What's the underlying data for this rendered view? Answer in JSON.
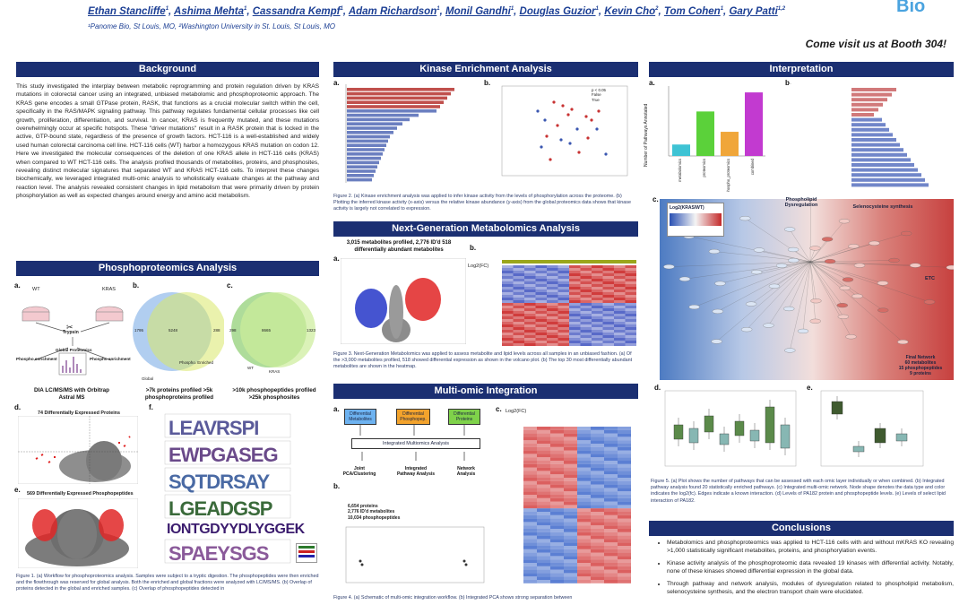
{
  "header": {
    "authors": [
      {
        "name": "Ethan Stancliffe",
        "sup": "1"
      },
      {
        "name": "Ashima Mehta",
        "sup": "1"
      },
      {
        "name": "Cassandra Kempf",
        "sup": "1"
      },
      {
        "name": "Adam Richardson",
        "sup": "1"
      },
      {
        "name": "Monil Gandhi",
        "sup": "1"
      },
      {
        "name": "Douglas Guzior",
        "sup": "1"
      },
      {
        "name": "Kevin Cho",
        "sup": "2"
      },
      {
        "name": "Tom Cohen",
        "sup": "1"
      },
      {
        "name": "Gary Patti",
        "sup": "1,2"
      }
    ],
    "affiliations": "¹Panome Bio, St Louis, MO, ²Washington University in St. Louis, St Louis, MO",
    "logo_text": "Bio",
    "booth": "Come visit us at Booth 304!"
  },
  "background": {
    "title": "Background",
    "text": "This study investigated the interplay between metabolic reprogramming and protein regulation driven by KRAS mutations in colorectal cancer using an integrated, unbiased metabolomic and phosphoproteomic approach. The KRAS gene encodes a small GTPase protein, RASK, that functions as a crucial molecular switch within the cell, specifically in the RAS/MAPK signaling pathway. This pathway regulates fundamental cellular processes like cell growth, proliferation, differentiation, and survival. In cancer, KRAS is frequently mutated, and these mutations overwhelmingly occur at specific hotspots. These \"driver mutations\" result in a RASK protein that is locked in the active, GTP-bound state, regardless of the presence of growth factors. HCT-116 is a well-established and widely used human colorectal carcinoma cell line. HCT-116 cells (WT) harbor a homozygous KRAS mutation on codon 12. Here we investigated the molecular consequences of the deletion of one KRAS allele in HCT-116 cells (KRAS) when compared to WT HCT-116 cells. The analysis profiled thousands of metabolites, proteins, and phosphosites, revealing distinct molecular signatures that separated WT and KRAS HCT-116 cells. To interpret these changes biochemically, we leveraged integrated multi-omic analysis to wholistically evaluate changes at the pathway and reaction level. The analysis revealed consistent changes in lipid metabolism that were primarily driven by protein phosphorylation as well as expected changes around energy and amino acid metabolism."
  },
  "phospho": {
    "title": "Phosphoproteomics Analysis",
    "labels": {
      "a": "a.",
      "b": "b.",
      "c": "c.",
      "d": "d.",
      "e": "e.",
      "f": "f."
    },
    "wt": "WT",
    "kras": "KRAS",
    "trypsin": "Trypsin",
    "global": "Global Proteomics",
    "phospho_enrich_left": "Phospho enrichment",
    "phospho_enrich_right": "Phospho enrichment",
    "instrument": "DIA LC/MS/MS with Orbitrap Astral MS",
    "venn_b": {
      "left": "1795",
      "mid": "5248",
      "right": "288",
      "label_left": "Global",
      "label_right": "Phospho. Enriched"
    },
    "venn_c": {
      "left": "298",
      "mid": "8665",
      "right": "1323",
      "label_left": "WT",
      "label_right": "KRAS"
    },
    "b_result": ">7k proteins profiled\n>5k phosphoproteins profiled",
    "c_result": ">10k phosphopeptides profiled\n>25k phosphosites",
    "d_title": "74 Differentially Expressed Proteins",
    "e_title": "569 Differentially Expressed Phosphopeptides",
    "logo_big": "IONTGDYYDLYGGEK",
    "caption": "Figure 1. (a) Workflow for phosphoproteomics analysis. Samples were subject to a tryptic digestion. The phosphopeptides were then enriched and the flowthrough was reserved for global analysis. Both the enriched and global fractions were analyzed with LC/MS/MS. (b) Overlap of proteins detected in the global and enriched samples. (c) Overlap of phosphopeptides detected in"
  },
  "kinase": {
    "title": "Kinase Enrichment Analysis",
    "labels": {
      "a": "a.",
      "b": "b."
    },
    "legend": [
      "p < 0.05",
      "False",
      "True"
    ],
    "caption": "Figure 2. (a) Kinase enrichment analysis was applied to infer kinase activity from the levels of phosphorylation across the proteome. (b) Plotting the inferred kinase activity (x-axis) versus the relative kinase abundance (y-axis) from the global proteomics data shows that kinase activity is largely not correlated to expression."
  },
  "metab": {
    "title": "Next-Generation Metabolomics Analysis",
    "labels": {
      "a": "a.",
      "b": "b."
    },
    "summary": "3,015 metabolites profiled, 2,776 ID'd\n518 differentially abundant metabolites",
    "legend": "Log2(FC)",
    "caption": "Figure 3. Next-Generation Metabolomics was applied to assess metabolite and lipid levels across all samples in an unbiased fashion. (a) Of the >3,000 metabolites profiled, 518 showed differential expression as shown in the volcano plot. (b) The top 30 most differentially abundant metabolites are shown in the heatmap."
  },
  "multi": {
    "title": "Multi-omic Integration",
    "labels": {
      "a": "a.",
      "b": "b.",
      "c": "c."
    },
    "boxes": [
      "Differential Metabolites",
      "Differential Phosphopep.",
      "Differential Proteins"
    ],
    "integrated": "Integrated Multiomics Analysis",
    "outputs": [
      "Joint PCA/Clustering",
      "Integrated Pathway Analysis",
      "Network Analysis"
    ],
    "counts": "6,654 proteins\n2,776 ID'd metabolites\n10,034 phosphopeptides",
    "legend": "Log2(FC)",
    "caption": "Figure 4. (a) Schematic of multi-omic integration workflow. (b) Integrated PCA shows strong separation between"
  },
  "interp": {
    "title": "Interpretation",
    "labels": {
      "a": "a.",
      "b": "b.",
      "c": "c.",
      "d": "d.",
      "e": "e."
    },
    "ylabel": "Number of Pathways Annotated",
    "legend_title": "Log2(KRAS/WT)",
    "network_labels": [
      "Phospholipid Dysregulation",
      "Selenocysteine synthesis",
      "ETC"
    ],
    "final_network": "Final Network\n60 metabolites\n15 phosphopeptides\n9 proteins",
    "caption": "Figure 5. (a) Plot shows the number of pathways that can be assessed with each omic layer individually or when combined. (b) Integrated pathway analysis found 20 statistically enriched pathways. (c) Integrated multi-omic network. Node shape denotes the data type and color indicates the log2(fc). Edges indicate a known interaction. (d) Levels of PA182 protein and phosphopeptide levels. (e) Levels of select lipid interaction of PA182."
  },
  "conclusions": {
    "title": "Conclusions",
    "items": [
      "Metabolomics and phosphoproteomics was applied to HCT-116 cells with and without mKRAS KO revealing >1,000 statistically significant metabolites, proteins, and phosphorylation events.",
      "Kinase activity analysis of the phosphoproteomic data revealed 19 kinases with differential activity. Notably, none of these kinases showed differential expression in the global data.",
      "Through pathway and network analysis, modules of dysregulation related to phospholipid metabolism, selenocysteine synthesis, and the electron transport chain were elucidated."
    ]
  },
  "chart_data": [
    {
      "type": "bar",
      "title": "",
      "xlabel": "",
      "ylabel": "Number of Pathways Annotated",
      "categories": [
        "metabolomics",
        "proteomics",
        "phospho_proteomics",
        "combined"
      ],
      "values": [
        18,
        70,
        38,
        100
      ],
      "colors": [
        "#3ec3d4",
        "#5bd13a",
        "#f0a63a",
        "#c23ad0"
      ],
      "ylim": [
        0,
        110
      ]
    }
  ]
}
